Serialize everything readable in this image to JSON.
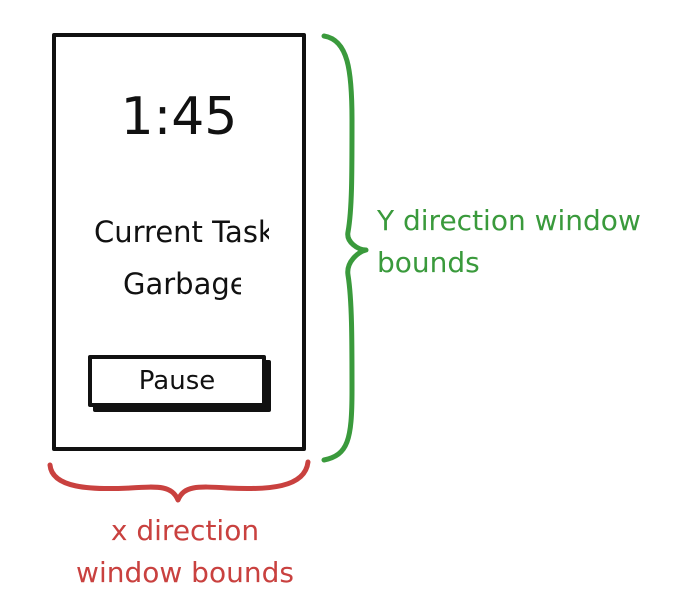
{
  "phone_screen": {
    "time": "1:45",
    "task_label": "Current Task",
    "task_name": "Garbage",
    "pause_label": "Pause"
  },
  "annotations": {
    "y_line1": "Y direction window",
    "y_line2": "bounds",
    "x_line1": "x direction",
    "x_line2": "window bounds"
  },
  "colors": {
    "y_bracket": "#3a9a3c",
    "x_bracket": "#c9413f",
    "ink": "#111111"
  }
}
